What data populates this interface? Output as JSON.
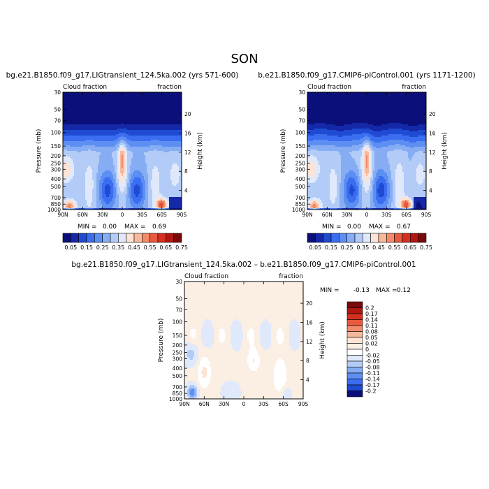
{
  "page_title": "SON",
  "chart_data": [
    {
      "type": "heatmap",
      "title": "bg.e21.B1850.f09_g17.LIGtransient_124.5ka.002 (yrs 571-600)",
      "left_label": "Cloud fraction",
      "right_label": "fraction",
      "ylabel": "Pressure (mb)",
      "y2label": "Height (km)",
      "x_ticks": [
        "90N",
        "60N",
        "30N",
        "0",
        "30S",
        "60S",
        "90S"
      ],
      "y_ticks": [
        "30",
        "50",
        "70",
        "100",
        "150",
        "200",
        "250",
        "300",
        "400",
        "500",
        "700",
        "850",
        "1000"
      ],
      "y_tick_values": [
        30,
        50,
        70,
        100,
        150,
        200,
        250,
        300,
        400,
        500,
        700,
        850,
        1000
      ],
      "y2_ticks": [
        "20",
        "16",
        "12",
        "8",
        "4"
      ],
      "y2_tick_values": [
        20,
        16,
        12,
        8,
        4
      ],
      "stats": {
        "min_label": "MIN =",
        "min": "0.00",
        "max_label": "MAX =",
        "max": "0.69"
      },
      "colorbar_labels": [
        "0.05",
        "0.15",
        "0.25",
        "0.35",
        "0.45",
        "0.55",
        "0.65",
        "0.75"
      ],
      "colorbar_colors": [
        "#0a0f7a",
        "#1428a8",
        "#1f4bd2",
        "#3a6df0",
        "#5d8ef2",
        "#86adf4",
        "#b2cbf7",
        "#dfe9fb",
        "#fde3d5",
        "#f8b99a",
        "#f28b6a",
        "#e8593d",
        "#d5301f",
        "#b1170f",
        "#7a0a0a"
      ],
      "levels": [
        0.05,
        0.1,
        0.15,
        0.2,
        0.25,
        0.3,
        0.35,
        0.4,
        0.45,
        0.5,
        0.55,
        0.6,
        0.65,
        0.7,
        0.75
      ]
    },
    {
      "type": "heatmap",
      "title": "b.e21.B1850.f09_g17.CMIP6-piControl.001 (yrs 1171-1200)",
      "left_label": "Cloud fraction",
      "right_label": "fraction",
      "ylabel": "Pressure (mb)",
      "y2label": "Height (km)",
      "x_ticks": [
        "90N",
        "60N",
        "30N",
        "0",
        "30S",
        "60S",
        "90S"
      ],
      "y_ticks": [
        "30",
        "50",
        "70",
        "100",
        "150",
        "200",
        "250",
        "300",
        "400",
        "500",
        "700",
        "850",
        "1000"
      ],
      "y_tick_values": [
        30,
        50,
        70,
        100,
        150,
        200,
        250,
        300,
        400,
        500,
        700,
        850,
        1000
      ],
      "y2_ticks": [
        "20",
        "16",
        "12",
        "8",
        "4"
      ],
      "y2_tick_values": [
        20,
        16,
        12,
        8,
        4
      ],
      "stats": {
        "min_label": "MIN =",
        "min": "0.00",
        "max_label": "MAX =",
        "max": "0.67"
      },
      "colorbar_labels": [
        "0.05",
        "0.15",
        "0.25",
        "0.35",
        "0.45",
        "0.55",
        "0.65",
        "0.75"
      ],
      "colorbar_colors": [
        "#0a0f7a",
        "#1428a8",
        "#1f4bd2",
        "#3a6df0",
        "#5d8ef2",
        "#86adf4",
        "#b2cbf7",
        "#dfe9fb",
        "#fde3d5",
        "#f8b99a",
        "#f28b6a",
        "#e8593d",
        "#d5301f",
        "#b1170f",
        "#7a0a0a"
      ],
      "levels": [
        0.05,
        0.1,
        0.15,
        0.2,
        0.25,
        0.3,
        0.35,
        0.4,
        0.45,
        0.5,
        0.55,
        0.6,
        0.65,
        0.7,
        0.75
      ]
    },
    {
      "type": "heatmap",
      "title": "bg.e21.B1850.f09_g17.LIGtransient_124.5ka.002 – b.e21.B1850.f09_g17.CMIP6-piControl.001",
      "left_label": "Cloud fraction",
      "right_label": "fraction",
      "ylabel": "Pressure (mb)",
      "y2label": "Height (km)",
      "x_ticks": [
        "90N",
        "60N",
        "30N",
        "0",
        "30S",
        "60S",
        "90S"
      ],
      "y_ticks": [
        "30",
        "50",
        "70",
        "100",
        "150",
        "200",
        "250",
        "300",
        "400",
        "500",
        "700",
        "850",
        "1000"
      ],
      "y_tick_values": [
        30,
        50,
        70,
        100,
        150,
        200,
        250,
        300,
        400,
        500,
        700,
        850,
        1000
      ],
      "y2_ticks": [
        "20",
        "16",
        "12",
        "8",
        "4"
      ],
      "y2_tick_values": [
        20,
        16,
        12,
        8,
        4
      ],
      "stats": {
        "min_label": "MIN =",
        "min": "-0.13",
        "max_label": "MAX =",
        "max": "0.12"
      },
      "colorbar_labels": [
        "0.2",
        "0.17",
        "0.14",
        "0.11",
        "0.08",
        "0.05",
        "0.02",
        "0",
        "-0.02",
        "-0.05",
        "-0.08",
        "-0.11",
        "-0.14",
        "-0.17",
        "-0.2"
      ],
      "colorbar_colors": [
        "#7a0a0a",
        "#b1170f",
        "#d5301f",
        "#e8593d",
        "#f28b6a",
        "#f8b99a",
        "#fde3d5",
        "#fbeee3",
        "#ffffff",
        "#dfe9fb",
        "#b2cbf7",
        "#86adf4",
        "#5d8ef2",
        "#3a6df0",
        "#1f4bd2",
        "#0a0f7a"
      ],
      "levels": [
        -0.2,
        -0.17,
        -0.14,
        -0.11,
        -0.08,
        -0.05,
        -0.02,
        0,
        0.02,
        0.05,
        0.08,
        0.11,
        0.14,
        0.17,
        0.2
      ]
    }
  ]
}
